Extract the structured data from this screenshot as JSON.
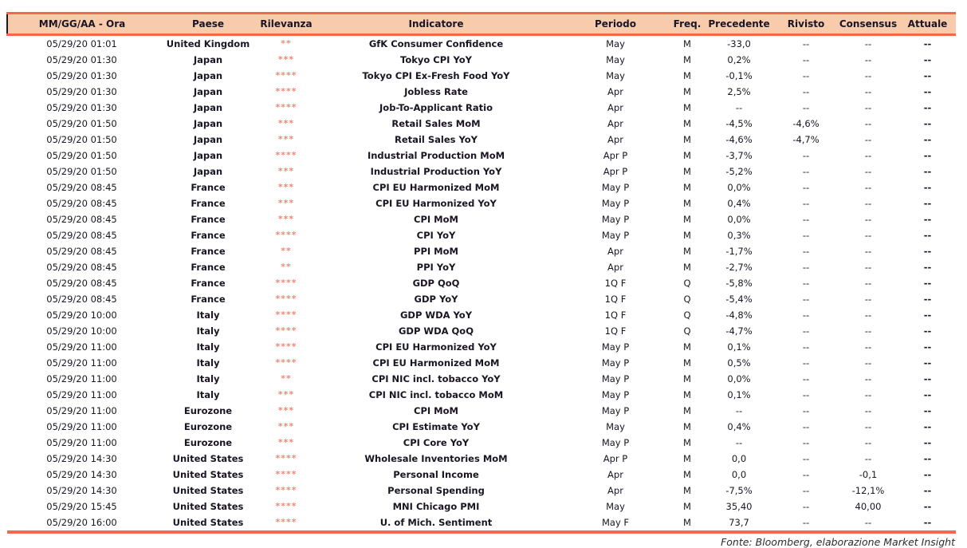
{
  "table": {
    "columns": [
      "MM/GG/AA - Ora",
      "Paese",
      "Rilevanza",
      "Indicatore",
      "Periodo",
      "Freq.",
      "Precedente",
      "Rivisto",
      "Consensus",
      "Attuale"
    ],
    "rows": [
      {
        "date": "05/29/20 01:01",
        "country": "United Kingdom",
        "stars": "**",
        "indicator": "GfK Consumer Confidence",
        "period": "May",
        "freq": "M",
        "previous": "-33,0",
        "revised": "--",
        "consensus": "--",
        "actual": "--"
      },
      {
        "date": "05/29/20 01:30",
        "country": "Japan",
        "stars": "***",
        "indicator": "Tokyo CPI YoY",
        "period": "May",
        "freq": "M",
        "previous": "0,2%",
        "revised": "--",
        "consensus": "--",
        "actual": "--"
      },
      {
        "date": "05/29/20 01:30",
        "country": "Japan",
        "stars": "****",
        "indicator": "Tokyo CPI Ex-Fresh Food YoY",
        "period": "May",
        "freq": "M",
        "previous": "-0,1%",
        "revised": "--",
        "consensus": "--",
        "actual": "--"
      },
      {
        "date": "05/29/20 01:30",
        "country": "Japan",
        "stars": "****",
        "indicator": "Jobless Rate",
        "period": "Apr",
        "freq": "M",
        "previous": "2,5%",
        "revised": "--",
        "consensus": "--",
        "actual": "--"
      },
      {
        "date": "05/29/20 01:30",
        "country": "Japan",
        "stars": "****",
        "indicator": "Job-To-Applicant Ratio",
        "period": "Apr",
        "freq": "M",
        "previous": "--",
        "revised": "--",
        "consensus": "--",
        "actual": "--"
      },
      {
        "date": "05/29/20 01:50",
        "country": "Japan",
        "stars": "***",
        "indicator": "Retail Sales MoM",
        "period": "Apr",
        "freq": "M",
        "previous": "-4,5%",
        "revised": "-4,6%",
        "consensus": "--",
        "actual": "--"
      },
      {
        "date": "05/29/20 01:50",
        "country": "Japan",
        "stars": "***",
        "indicator": "Retail Sales YoY",
        "period": "Apr",
        "freq": "M",
        "previous": "-4,6%",
        "revised": "-4,7%",
        "consensus": "--",
        "actual": "--"
      },
      {
        "date": "05/29/20 01:50",
        "country": "Japan",
        "stars": "****",
        "indicator": "Industrial Production MoM",
        "period": "Apr P",
        "freq": "M",
        "previous": "-3,7%",
        "revised": "--",
        "consensus": "--",
        "actual": "--"
      },
      {
        "date": "05/29/20 01:50",
        "country": "Japan",
        "stars": "***",
        "indicator": "Industrial Production YoY",
        "period": "Apr P",
        "freq": "M",
        "previous": "-5,2%",
        "revised": "--",
        "consensus": "--",
        "actual": "--"
      },
      {
        "date": "05/29/20 08:45",
        "country": "France",
        "stars": "***",
        "indicator": "CPI EU Harmonized MoM",
        "period": "May P",
        "freq": "M",
        "previous": "0,0%",
        "revised": "--",
        "consensus": "--",
        "actual": "--"
      },
      {
        "date": "05/29/20 08:45",
        "country": "France",
        "stars": "***",
        "indicator": "CPI EU Harmonized YoY",
        "period": "May P",
        "freq": "M",
        "previous": "0,4%",
        "revised": "--",
        "consensus": "--",
        "actual": "--"
      },
      {
        "date": "05/29/20 08:45",
        "country": "France",
        "stars": "***",
        "indicator": "CPI MoM",
        "period": "May P",
        "freq": "M",
        "previous": "0,0%",
        "revised": "--",
        "consensus": "--",
        "actual": "--"
      },
      {
        "date": "05/29/20 08:45",
        "country": "France",
        "stars": "****",
        "indicator": "CPI YoY",
        "period": "May P",
        "freq": "M",
        "previous": "0,3%",
        "revised": "--",
        "consensus": "--",
        "actual": "--"
      },
      {
        "date": "05/29/20 08:45",
        "country": "France",
        "stars": "**",
        "indicator": "PPI MoM",
        "period": "Apr",
        "freq": "M",
        "previous": "-1,7%",
        "revised": "--",
        "consensus": "--",
        "actual": "--"
      },
      {
        "date": "05/29/20 08:45",
        "country": "France",
        "stars": "**",
        "indicator": "PPI YoY",
        "period": "Apr",
        "freq": "M",
        "previous": "-2,7%",
        "revised": "--",
        "consensus": "--",
        "actual": "--"
      },
      {
        "date": "05/29/20 08:45",
        "country": "France",
        "stars": "****",
        "indicator": "GDP QoQ",
        "period": "1Q F",
        "freq": "Q",
        "previous": "-5,8%",
        "revised": "--",
        "consensus": "--",
        "actual": "--"
      },
      {
        "date": "05/29/20 08:45",
        "country": "France",
        "stars": "****",
        "indicator": "GDP YoY",
        "period": "1Q F",
        "freq": "Q",
        "previous": "-5,4%",
        "revised": "--",
        "consensus": "--",
        "actual": "--"
      },
      {
        "date": "05/29/20 10:00",
        "country": "Italy",
        "stars": "****",
        "indicator": "GDP WDA YoY",
        "period": "1Q F",
        "freq": "Q",
        "previous": "-4,8%",
        "revised": "--",
        "consensus": "--",
        "actual": "--"
      },
      {
        "date": "05/29/20 10:00",
        "country": "Italy",
        "stars": "****",
        "indicator": "GDP WDA QoQ",
        "period": "1Q F",
        "freq": "Q",
        "previous": "-4,7%",
        "revised": "--",
        "consensus": "--",
        "actual": "--"
      },
      {
        "date": "05/29/20 11:00",
        "country": "Italy",
        "stars": "****",
        "indicator": "CPI EU Harmonized YoY",
        "period": "May P",
        "freq": "M",
        "previous": "0,1%",
        "revised": "--",
        "consensus": "--",
        "actual": "--"
      },
      {
        "date": "05/29/20 11:00",
        "country": "Italy",
        "stars": "****",
        "indicator": "CPI EU Harmonized MoM",
        "period": "May P",
        "freq": "M",
        "previous": "0,5%",
        "revised": "--",
        "consensus": "--",
        "actual": "--"
      },
      {
        "date": "05/29/20 11:00",
        "country": "Italy",
        "stars": "**",
        "indicator": "CPI NIC incl. tobacco YoY",
        "period": "May P",
        "freq": "M",
        "previous": "0,0%",
        "revised": "--",
        "consensus": "--",
        "actual": "--"
      },
      {
        "date": "05/29/20 11:00",
        "country": "Italy",
        "stars": "***",
        "indicator": "CPI NIC incl. tobacco MoM",
        "period": "May P",
        "freq": "M",
        "previous": "0,1%",
        "revised": "--",
        "consensus": "--",
        "actual": "--"
      },
      {
        "date": "05/29/20 11:00",
        "country": "Eurozone",
        "stars": "***",
        "indicator": "CPI MoM",
        "period": "May P",
        "freq": "M",
        "previous": "--",
        "revised": "--",
        "consensus": "--",
        "actual": "--"
      },
      {
        "date": "05/29/20 11:00",
        "country": "Eurozone",
        "stars": "***",
        "indicator": "CPI Estimate YoY",
        "period": "May",
        "freq": "M",
        "previous": "0,4%",
        "revised": "--",
        "consensus": "--",
        "actual": "--"
      },
      {
        "date": "05/29/20 11:00",
        "country": "Eurozone",
        "stars": "***",
        "indicator": "CPI Core YoY",
        "period": "May P",
        "freq": "M",
        "previous": "--",
        "revised": "--",
        "consensus": "--",
        "actual": "--"
      },
      {
        "date": "05/29/20 14:30",
        "country": "United States",
        "stars": "****",
        "indicator": "Wholesale Inventories MoM",
        "period": "Apr P",
        "freq": "M",
        "previous": "0,0",
        "revised": "--",
        "consensus": "--",
        "actual": "--"
      },
      {
        "date": "05/29/20 14:30",
        "country": "United States",
        "stars": "****",
        "indicator": "Personal Income",
        "period": "Apr",
        "freq": "M",
        "previous": "0,0",
        "revised": "--",
        "consensus": "-0,1",
        "actual": "--"
      },
      {
        "date": "05/29/20 14:30",
        "country": "United States",
        "stars": "****",
        "indicator": "Personal Spending",
        "period": "Apr",
        "freq": "M",
        "previous": "-7,5%",
        "revised": "--",
        "consensus": "-12,1%",
        "actual": "--"
      },
      {
        "date": "05/29/20 15:45",
        "country": "United States",
        "stars": "****",
        "indicator": "MNI Chicago PMI",
        "period": "May",
        "freq": "M",
        "previous": "35,40",
        "revised": "--",
        "consensus": "40,00",
        "actual": "--"
      },
      {
        "date": "05/29/20 16:00",
        "country": "United States",
        "stars": "****",
        "indicator": "U. of Mich. Sentiment",
        "period": "May F",
        "freq": "M",
        "previous": "73,7",
        "revised": "--",
        "consensus": "--",
        "actual": "--"
      }
    ]
  },
  "footer": {
    "text": "Fonte: Bloomberg, elaborazione Market Insight"
  },
  "colors": {
    "header_bg": "#F8CBAD",
    "accent_border": "#F3684C",
    "star": "#F98475",
    "text": "#1A1523"
  }
}
